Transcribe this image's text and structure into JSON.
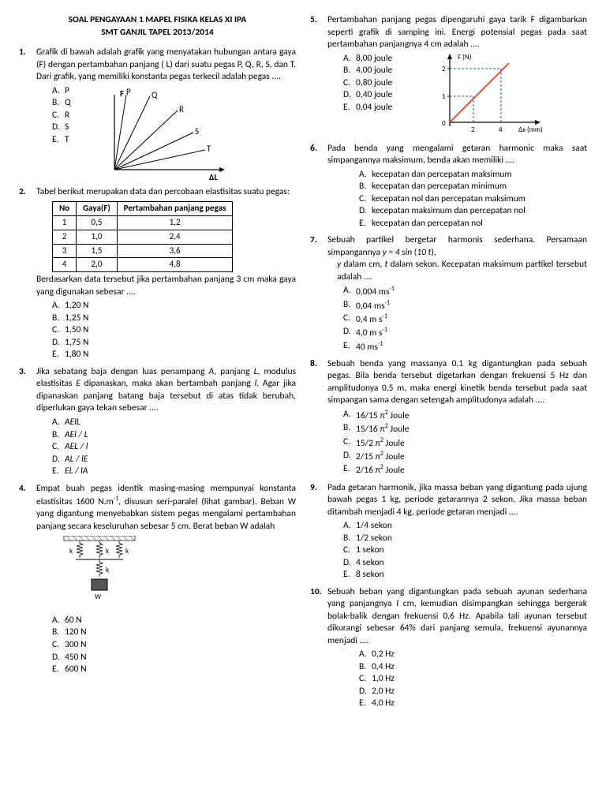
{
  "header": {
    "line1": "SOAL PENGAYAAN 1 MAPEL FISIKA KELAS XI IPA",
    "line2": "SMT GANJIL TAPEL 2013/2014"
  },
  "q1": {
    "text": "Grafik di bawah adalah grafik yang menyatakan hubungan antara gaya (F) dengan pertambahan panjang ( L) dari suatu pegas P, Q, R, S, dan T. Dari grafik, yang memiliki konstanta pegas terkecil adalah  pegas ....",
    "opts": [
      "P",
      "Q",
      "R",
      "S",
      "T"
    ],
    "graph": {
      "labels": [
        "P",
        "Q",
        "R",
        "S",
        "T"
      ],
      "ylabel": "F",
      "xlabel": "ΔL",
      "line_color": "#000"
    }
  },
  "q2": {
    "text": "Tabel berikut merupakan data dan percobaan elastisitas suatu pegas:",
    "table": {
      "headers": [
        "No",
        "Gaya(F)",
        "Pertambahan panjang pegas"
      ],
      "rows": [
        [
          "1",
          "0,5",
          "1,2"
        ],
        [
          "2",
          "1,0",
          "2,4"
        ],
        [
          "3",
          "1,5",
          "3,6"
        ],
        [
          "4",
          "2,0",
          "4,8"
        ]
      ]
    },
    "text2": "Berdasarkan data tersebut  jika pertambahan panjang 3 cm maka gaya yang digunakan sebesar ....",
    "opts": [
      "1,20 N",
      "1,25 N",
      "1,50 N",
      "1,75 N",
      "1,80 N"
    ]
  },
  "q3": {
    "text_html": "Jika sebatang baja dengan luas penampang <i>A</i>, panjang <i>L</i>, modulus elastisitas <i>E</i> dipanaskan, maka akan bertambah panjang <i>l</i>. Agar jika dipanaskan panjang batang baja tersebut di atas tidak berubah, diperlukan gaya tekan sebesar ....",
    "opts_html": [
      "<i>AElL</i>",
      "<i>AEl / L</i>",
      "<i>AEL / l</i>",
      "<i>AL / lE</i>",
      "<i>EL / lA</i>"
    ]
  },
  "q4": {
    "text_html": "Empat buah pegas identik masing-masing mempunyai konstanta elastisitas 1600 N.m<sup>-1</sup>, disusun seri-paralel (lihat gambar). Beban W yang digantung menyebabkan sistem pegas mengalami pertambahan panjang secara keseluruhan sebesar 5 cm. Berat beban W adalah",
    "opts": [
      "60 N",
      "120 N",
      "300 N",
      "450 N",
      "600 N"
    ]
  },
  "q5": {
    "text": "Pertambahan panjang pegas dipengaruhi gaya tarik F digambarkan seperti grafik di samping ini. Energi potensial pegas pada saat pertambahan panjangnya 4 cm adalah ....",
    "opts": [
      "8,00 joule",
      "4,00 joule",
      "0,80 joule",
      "0,40 joule",
      "0,04 joule"
    ],
    "graph": {
      "ylabel": "F (N)",
      "xlabel": "Δx (mm)",
      "yticks": [
        "0",
        "1",
        "2"
      ],
      "xticks": [
        "2",
        "4"
      ],
      "line_color": "#d84a2b",
      "dash_color": "#1a5fb4",
      "axis_color": "#000"
    }
  },
  "q6": {
    "text": "Pada benda yang mengalami getaran harmonic maka saat simpangannya maksimum, benda akan memiliki ....",
    "opts": [
      "kecepatan dan percepatan maksimum",
      "kecepatan dan percepatan minimum",
      "kecepatan nol dan percepatan maksimum",
      "kecepatan maksimum dan percepatan nol",
      "kecepatan dan percepatan nol"
    ]
  },
  "q7": {
    "text_html": "Sebuah partikel bergetar harmonis sederhana. Persamaan simpangannya <i>y = 4 sin</i> (<i>10 t</i>),",
    "text2_html": "<i>y</i> dalam cm, <i>t</i> dalam sekon. Kecepatan maksimum partikel tersebut adalah ....",
    "opts_html": [
      "0,004 ms<sup>-1</sup>",
      "0,04 ms<sup>-1</sup>",
      "0,4 m s<sup>-1</sup>",
      "4,0 m s<sup>-1</sup>",
      "40 ms<sup>-1</sup>"
    ]
  },
  "q8": {
    "text": "Sebuah benda yang massanya 0,1 kg digantungkan pada sebuah pegas. Bila benda tersebut digetarkan dengan frekuensi 5 Hz dan amplitudonya 0,5 m, maka energi kinetik benda tersebut pada saat simpangan sama dengan setengah amplitudonya adalah ....",
    "opts_html": [
      "16/15  π<sup>2</sup> Joule",
      "15/16  π<sup>2</sup> Joule",
      "15/2  π<sup>2</sup> Joule",
      "2/15  π<sup>2</sup> Joule",
      "2/16  π<sup>2</sup> Joule"
    ]
  },
  "q9": {
    "text": "Pada getaran harmonik, jika massa beban yang digantung pada ujung bawah pegas 1 kg, periode getarannya 2 sekon. Jika massa beban ditambah menjadi 4 kg, periode getaran menjadi ....",
    "opts": [
      "1/4 sekon",
      "1/2 sekon",
      "1 sekon",
      "4 sekon",
      "8 sekon"
    ]
  },
  "q10": {
    "text_html": "Sebuah beban yang digantungkan pada sebuah ayunan sederhana yang panjangnya <i>l</i> cm, kemudian disimpangkan sehingga bergerak bolak-balik dengan  frekuensi 0,6 Hz. Apabila tali ayunan tersebut dikurangi sebesar 64% dari panjang semula, frekuensi ayunannya menjadi ....",
    "opts": [
      "0,2 Hz",
      "0,4 Hz",
      "1,0 Hz",
      "2,0 Hz",
      "4,0 Hz"
    ]
  },
  "labels": [
    "A.",
    "B.",
    "C.",
    "D.",
    "E."
  ]
}
